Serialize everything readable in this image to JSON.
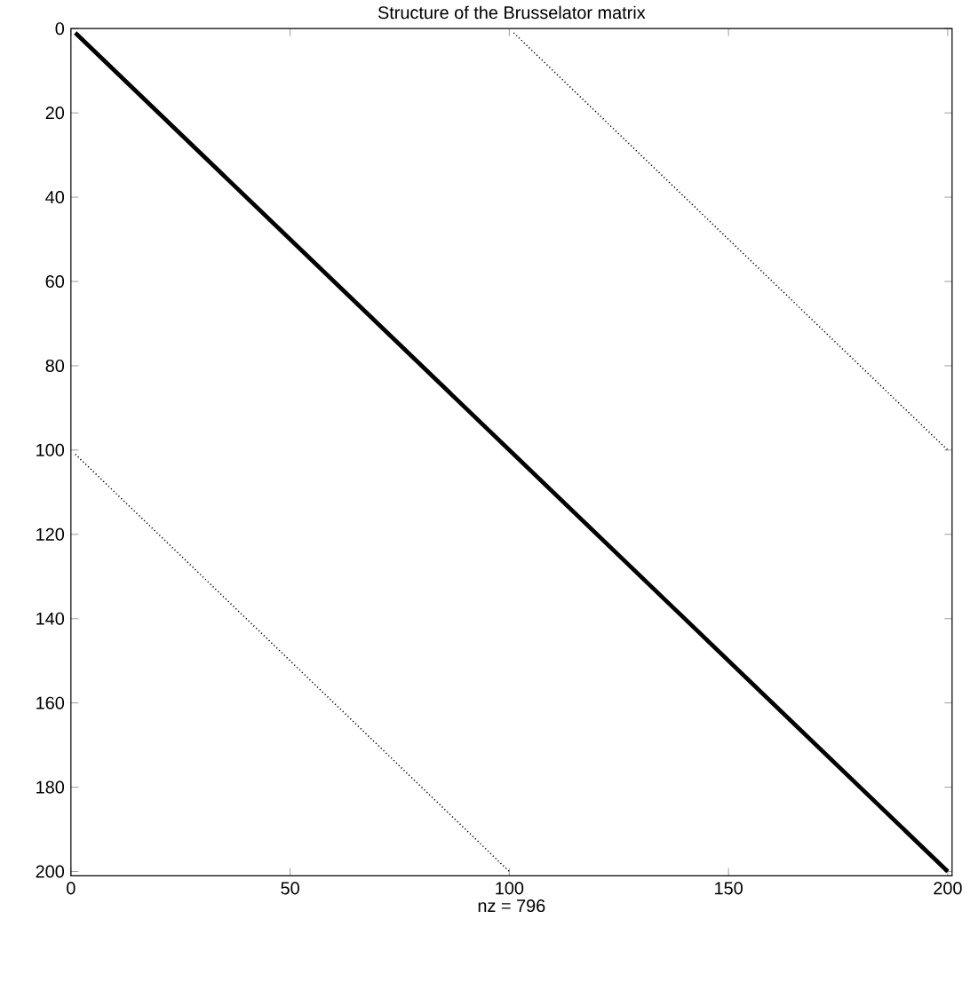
{
  "chart_data": {
    "type": "line",
    "title": "Structure of the Brusselator matrix",
    "xlabel": "nz = 796",
    "series": [
      {
        "color": "#000000",
        "line_style": "solid",
        "x": [
          1,
          200
        ],
        "values": [
          1,
          200
        ]
      },
      {
        "color": "#000000",
        "line_style": "dotted",
        "x": [
          101,
          200
        ],
        "values": [
          1,
          100
        ]
      },
      {
        "color": "#000000",
        "line_style": "dotted",
        "x": [
          1,
          100
        ],
        "values": [
          101,
          200
        ]
      }
    ],
    "xlim": [
      0,
      201
    ],
    "ylim": [
      201,
      0
    ],
    "xticks": [
      0,
      50,
      100,
      150,
      200
    ],
    "yticks": [
      0,
      20,
      40,
      60,
      80,
      100,
      120,
      140,
      160,
      180,
      200
    ],
    "marker": "none"
  }
}
